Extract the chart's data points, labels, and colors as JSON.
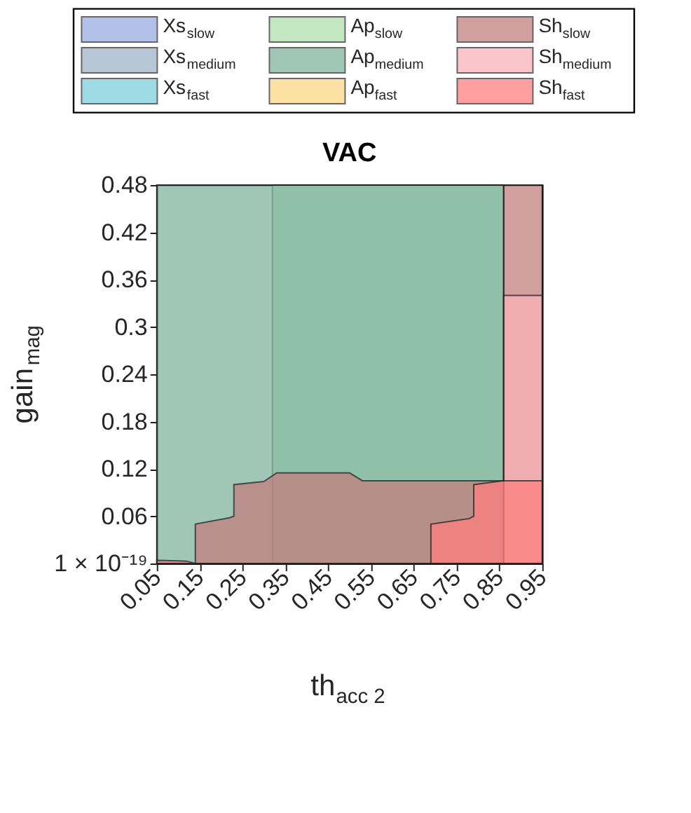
{
  "chart_data": {
    "type": "area",
    "title": "VAC",
    "xlabel": "th$_{acc 2}$",
    "ylabel": "gain$_{mag}$",
    "xlim": [
      0.05,
      0.95
    ],
    "xticks": [
      0.05,
      0.15,
      0.25,
      0.35,
      0.45,
      0.55,
      0.65,
      0.75,
      0.85,
      0.95
    ],
    "ylim": [
      0,
      0.48
    ],
    "yticks": [
      {
        "value": 0,
        "label": "1 × 10⁻¹⁹"
      },
      0.06,
      0.12,
      0.18,
      0.24,
      0.3,
      0.36,
      0.42,
      0.48
    ],
    "legend": "top",
    "grid": false,
    "series": [
      {
        "name": "Xs$_{slow}$",
        "color": "#9aabe2"
      },
      {
        "name": "Xs$_{medium}$",
        "color": "#a0b4c8"
      },
      {
        "name": "Xs$_{fast}$",
        "color": "#80d0dc"
      },
      {
        "name": "Ap$_{slow}$",
        "color": "#b0e0ac",
        "x": [
          0.32,
          0.86
        ],
        "values": [
          0.48,
          0.48
        ]
      },
      {
        "name": "Ap$_{medium}$",
        "color": "#80b4a0",
        "x": [
          0.05,
          0.86
        ],
        "values": [
          0.48,
          0.48
        ]
      },
      {
        "name": "Ap$_{fast}$",
        "color": "#fcd888"
      },
      {
        "name": "Sh$_{slow}$",
        "color": "#c47f7f",
        "x": [
          0.14,
          0.14,
          0.22,
          0.23,
          0.23,
          0.3,
          0.33,
          0.5,
          0.53,
          0.86,
          0.86,
          0.95
        ],
        "values": [
          0.002,
          0.05,
          0.058,
          0.06,
          0.1,
          0.104,
          0.115,
          0.115,
          0.105,
          0.105,
          0.48,
          0.48
        ]
      },
      {
        "name": "Sh$_{medium}$",
        "color": "#fab4b8",
        "x": [
          0.86,
          0.95
        ],
        "values": [
          0.34,
          0.34
        ]
      },
      {
        "name": "Sh$_{fast}$",
        "color": "#ff7f7f",
        "x": [
          0.05,
          0.12,
          0.14,
          0.4,
          0.69,
          0.69,
          0.78,
          0.79,
          0.79,
          0.86,
          0.95
        ],
        "values": [
          0.004,
          0.003,
          0,
          null,
          0.002,
          0.05,
          0.057,
          0.06,
          0.1,
          0.105,
          0.105
        ]
      }
    ]
  }
}
